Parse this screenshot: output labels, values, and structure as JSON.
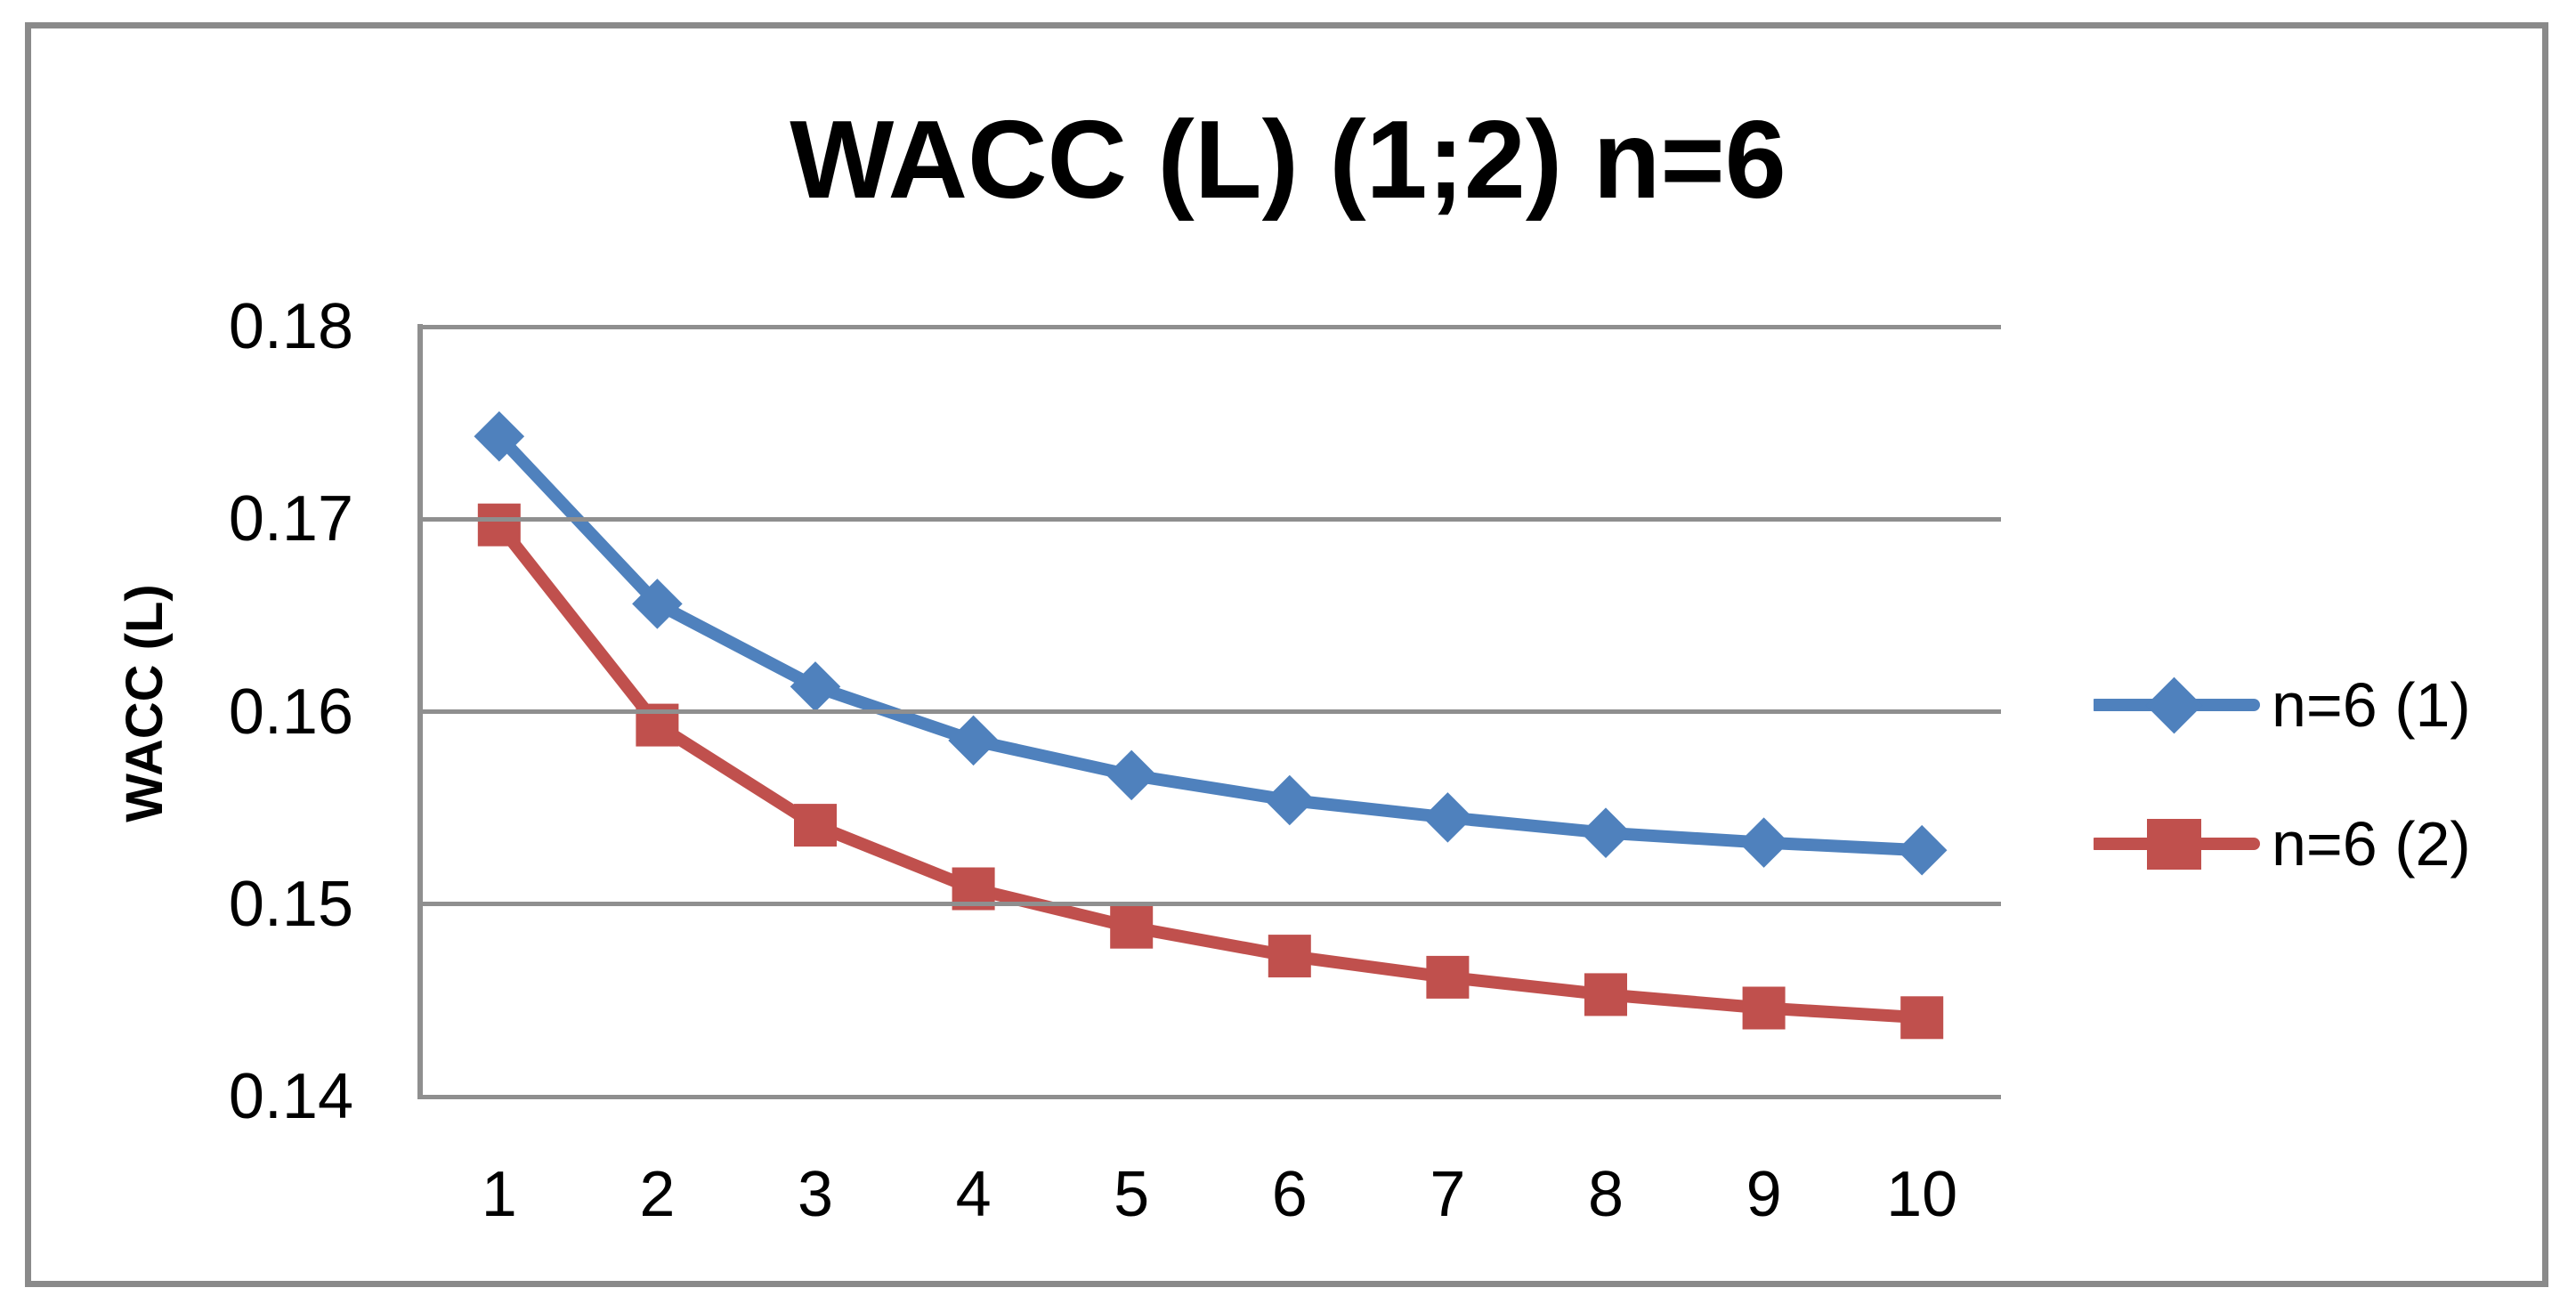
{
  "chart_data": {
    "type": "line",
    "title": "WACC (L) (1;2) n=6",
    "xlabel": "",
    "ylabel": "WACC (L)",
    "x": [
      1,
      2,
      3,
      4,
      5,
      6,
      7,
      8,
      9,
      10
    ],
    "x_tick_labels": [
      "1",
      "2",
      "3",
      "4",
      "5",
      "6",
      "7",
      "8",
      "9",
      "10"
    ],
    "y_tick_labels": [
      "0.18",
      "0.17",
      "0.16",
      "0.15",
      "0.14"
    ],
    "ylim": [
      0.14,
      0.18
    ],
    "y_tick_step": 0.01,
    "grid": "horizontal-only",
    "legend_position": "right",
    "series": [
      {
        "name": "n=6 (1)",
        "marker": "diamond",
        "color": "#4F81BD",
        "values": [
          0.1743,
          0.1656,
          0.1613,
          0.1585,
          0.1567,
          0.1554,
          0.1545,
          0.1537,
          0.1532,
          0.1528
        ]
      },
      {
        "name": "n=6 (2)",
        "marker": "square",
        "color": "#C0504D",
        "values": [
          0.1697,
          0.1593,
          0.1541,
          0.1508,
          0.1488,
          0.1473,
          0.1462,
          0.1453,
          0.1446,
          0.1441
        ]
      }
    ],
    "colors": {
      "gridline": "#8F8F8F",
      "axis_line": "#8F8F8F",
      "chart_border": "#8A8A8A",
      "text": "#000000",
      "background": "#FFFFFF"
    }
  }
}
